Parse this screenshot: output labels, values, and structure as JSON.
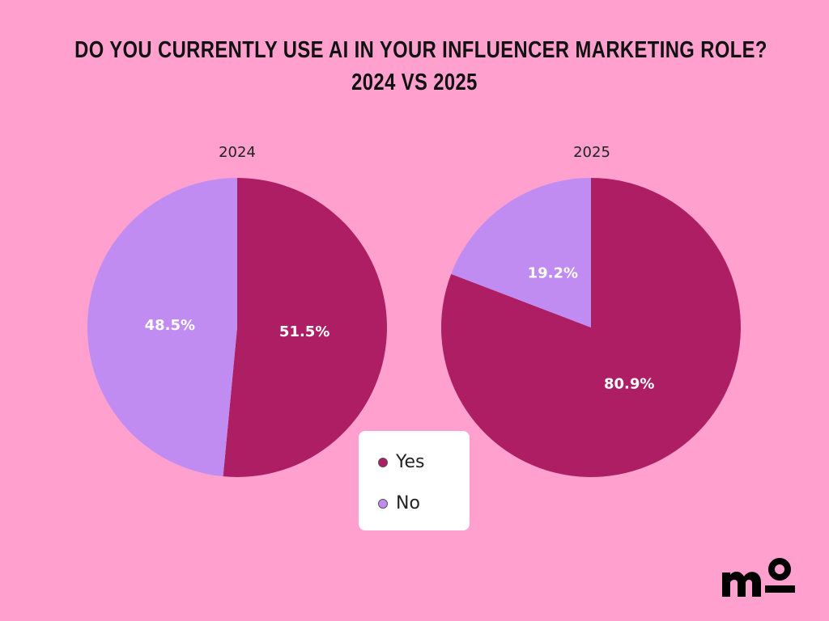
{
  "title_line1": "DO YOU CURRENTLY USE AI IN YOUR INFLUENCER MARKETING ROLE?",
  "title_line2": "2024 VS 2025",
  "colors": {
    "yes": "#ad1e64",
    "no": "#c08cf2",
    "background": "#ffa0cf"
  },
  "chart_data": [
    {
      "type": "pie",
      "title": "2024",
      "categories": [
        "Yes",
        "No"
      ],
      "values": [
        51.5,
        48.5
      ],
      "labels": [
        "51.5%",
        "48.5%"
      ]
    },
    {
      "type": "pie",
      "title": "2025",
      "categories": [
        "Yes",
        "No"
      ],
      "values": [
        80.9,
        19.2
      ],
      "labels": [
        "80.9%",
        "19.2%"
      ]
    }
  ],
  "legend": {
    "items": [
      "Yes",
      "No"
    ],
    "placement": "bottom-center"
  },
  "logo": "mo"
}
